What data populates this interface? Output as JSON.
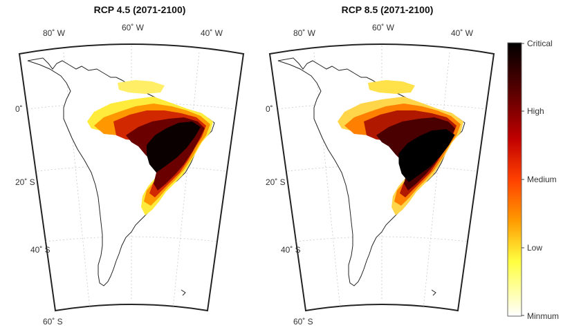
{
  "panels": [
    {
      "title": "RCP 4.5 (2071-2100)",
      "lon_labels": [
        "80˚ W",
        "60˚ W",
        "40˚ W"
      ],
      "lat_labels": [
        "0˚",
        "20˚ S",
        "40˚ S",
        "60˚ S"
      ]
    },
    {
      "title": "RCP 8.5 (2071-2100)",
      "lon_labels": [
        "80˚ W",
        "60˚ W",
        "40˚ W"
      ],
      "lat_labels": [
        "0˚",
        "20˚ S",
        "40˚ S",
        "60˚ S"
      ]
    }
  ],
  "colorbar": {
    "labels": [
      "Critical",
      "High",
      "Medium",
      "Low",
      "Minmum"
    ],
    "colors": [
      "#000000",
      "#8b0000",
      "#ff2a00",
      "#ff9a00",
      "#ffff40",
      "#ffffff"
    ]
  }
}
